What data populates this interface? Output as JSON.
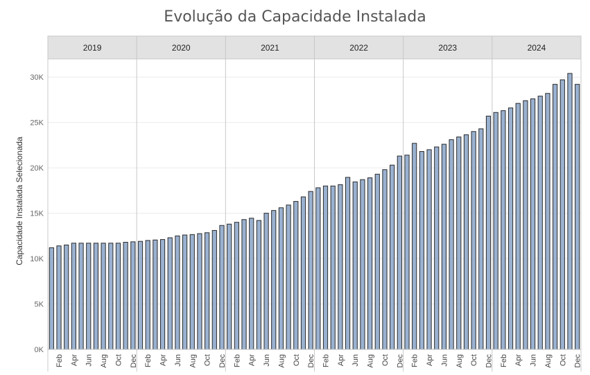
{
  "chart_data": {
    "type": "bar",
    "title": "Evolução da Capacidade Instalada",
    "xlabel": "",
    "ylabel": "Capacidade Instalada Selecionada",
    "ylim": [
      0,
      32000
    ],
    "y_ticks": [
      "0K",
      "5K",
      "10K",
      "15K",
      "20K",
      "25K",
      "30K"
    ],
    "y_tick_values": [
      0,
      5000,
      10000,
      15000,
      20000,
      25000,
      30000
    ],
    "years": [
      "2019",
      "2020",
      "2021",
      "2022",
      "2023",
      "2024"
    ],
    "month_labels": [
      "Feb",
      "Apr",
      "Jun",
      "Aug",
      "Oct",
      "Dec"
    ],
    "months_per_year": 12,
    "grid": true,
    "bar_color": "#9ab1d0",
    "bar_edge_color": "#2a2a2a",
    "values": [
      11200,
      11400,
      11500,
      11700,
      11700,
      11700,
      11700,
      11700,
      11700,
      11700,
      11800,
      11850,
      11900,
      12000,
      12050,
      12100,
      12300,
      12500,
      12600,
      12650,
      12750,
      12850,
      13100,
      13650,
      13800,
      14000,
      14300,
      14450,
      14200,
      15000,
      15300,
      15600,
      15900,
      16300,
      16800,
      17400,
      17800,
      18000,
      18000,
      18150,
      18950,
      18450,
      18700,
      18900,
      19300,
      19800,
      20300,
      21300,
      21400,
      22700,
      21800,
      22000,
      22300,
      22600,
      23100,
      23400,
      23650,
      24000,
      24300,
      25700,
      26100,
      26300,
      26600,
      27100,
      27400,
      27600,
      27900,
      28200,
      29200,
      29700,
      30400,
      29200
    ]
  },
  "colors": {
    "header_bg": "#e2e2e2",
    "divider": "#c8c8c8",
    "gridline": "#ececec",
    "title": "#555555"
  }
}
